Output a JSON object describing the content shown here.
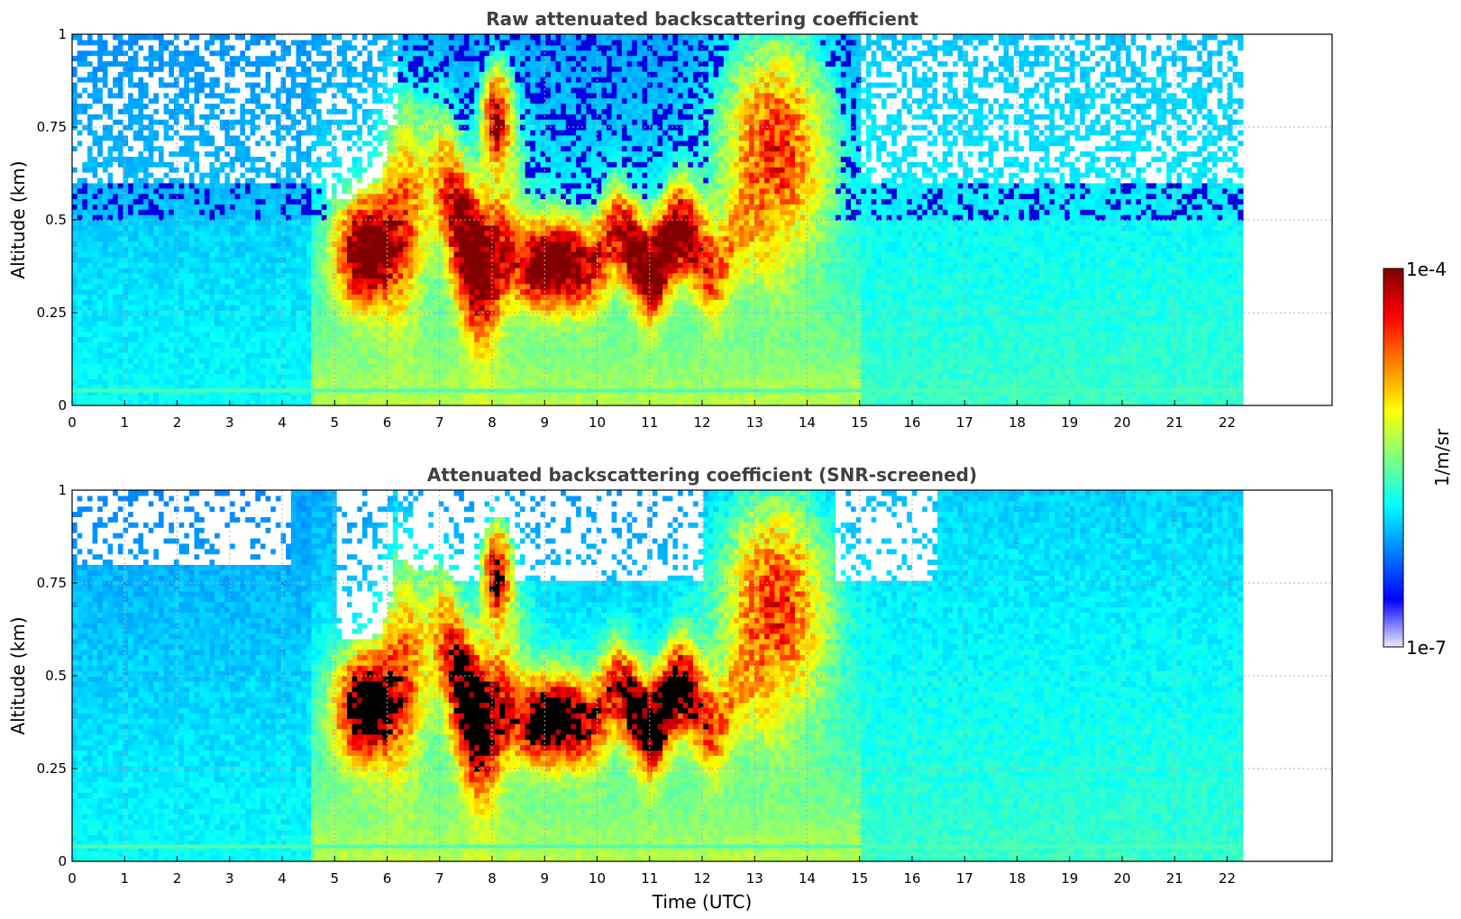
{
  "chart_data": [
    {
      "type": "heatmap",
      "title": "Raw attenuated backscattering coefficient",
      "ylabel": "Altitude (km)",
      "xlabel": "",
      "xlim": [
        0,
        24
      ],
      "ylim": [
        0,
        1
      ],
      "x_ticks": [
        "0",
        "1",
        "2",
        "3",
        "4",
        "5",
        "6",
        "7",
        "8",
        "9",
        "10",
        "11",
        "12",
        "13",
        "14",
        "15",
        "16",
        "17",
        "18",
        "19",
        "20",
        "21",
        "22"
      ],
      "y_ticks": [
        "0",
        "0.25",
        "0.5",
        "0.75",
        "1"
      ],
      "data_extent_x": [
        0,
        22.3
      ],
      "grid": true,
      "colorscale": "jet",
      "log_scale": true,
      "features": [
        {
          "x": [
            5.0,
            6.2
          ],
          "y": [
            0.28,
            0.55
          ],
          "level": "high"
        },
        {
          "x": [
            7.0,
            8.3
          ],
          "y": [
            0.3,
            0.85
          ],
          "level": "high"
        },
        {
          "x": [
            8.5,
            9.8
          ],
          "y": [
            0.28,
            0.5
          ],
          "level": "high"
        },
        {
          "x": [
            10.0,
            12.5
          ],
          "y": [
            0.3,
            0.55
          ],
          "level": "high"
        },
        {
          "x": [
            12.6,
            14.6
          ],
          "y": [
            0.4,
            1.0
          ],
          "level": "medium"
        }
      ]
    },
    {
      "type": "heatmap",
      "title": "Attenuated backscattering coefficient (SNR-screened)",
      "ylabel": "Altitude (km)",
      "xlabel": "Time (UTC)",
      "xlim": [
        0,
        24
      ],
      "ylim": [
        0,
        1
      ],
      "x_ticks": [
        "0",
        "1",
        "2",
        "3",
        "4",
        "5",
        "6",
        "7",
        "8",
        "9",
        "10",
        "11",
        "12",
        "13",
        "14",
        "15",
        "16",
        "17",
        "18",
        "19",
        "20",
        "21",
        "22"
      ],
      "y_ticks": [
        "0",
        "0.25",
        "0.5",
        "0.75",
        "1"
      ],
      "data_extent_x": [
        0,
        22.3
      ],
      "grid": true,
      "colorscale": "jet",
      "log_scale": true,
      "features": [
        {
          "x": [
            5.0,
            6.2
          ],
          "y": [
            0.28,
            0.55
          ],
          "level": "saturated"
        },
        {
          "x": [
            7.0,
            8.3
          ],
          "y": [
            0.3,
            0.85
          ],
          "level": "saturated"
        },
        {
          "x": [
            8.5,
            9.8
          ],
          "y": [
            0.28,
            0.5
          ],
          "level": "saturated"
        },
        {
          "x": [
            10.0,
            12.5
          ],
          "y": [
            0.3,
            0.55
          ],
          "level": "saturated"
        }
      ]
    }
  ],
  "colorbar": {
    "min_label": "1e-7",
    "max_label": "1e-4",
    "label": "1/m/sr",
    "colors": [
      "#ececff",
      "#0000ff",
      "#0080ff",
      "#00ffff",
      "#80ff80",
      "#ffff00",
      "#ff8000",
      "#ff0000",
      "#800000"
    ]
  },
  "colors": {
    "background_noise": "#0000ff",
    "base": "#0072ff",
    "peak": "#800000",
    "saturated": "#000000"
  }
}
